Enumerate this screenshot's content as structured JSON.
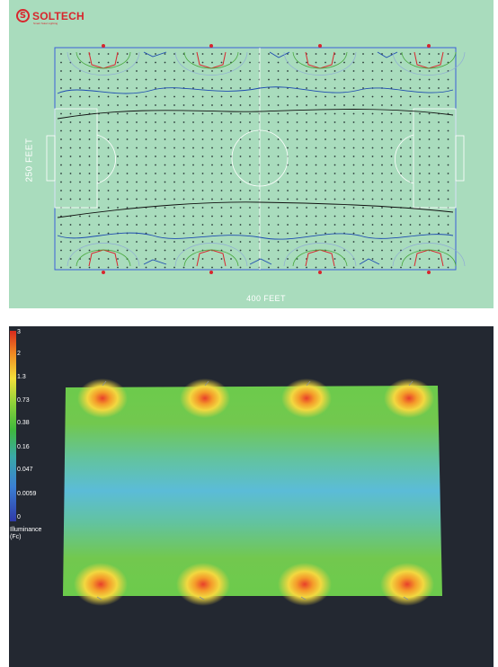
{
  "logo": {
    "mark": "S",
    "word": "SOLTECH",
    "tagline": "Smart Solar Lighting"
  },
  "field": {
    "width_label": "400 FEET",
    "height_label": "250 FEET",
    "background": "#a9dcbd",
    "outline_color": "#3b5fd6",
    "contour_colors": [
      "#d8262d",
      "#49a83e",
      "#8faad6",
      "#1e4bb0",
      "#111111"
    ]
  },
  "illuminance_legend": {
    "labels": [
      "3",
      "2",
      "1.3",
      "0.73",
      "0.38",
      "0.16",
      "0.047",
      "0.0059",
      "0"
    ],
    "title": "Illuminance\n(Fc)",
    "gradient": [
      "#d62a1e",
      "#f08a22",
      "#f2e03a",
      "#8fd23a",
      "#3fb83d",
      "#3aa9a8",
      "#3b7fd3",
      "#2f3aa8"
    ]
  },
  "render_colors": {
    "background": "#232831",
    "hotspot": [
      "#e8402a",
      "#f49a2a",
      "#f2d840"
    ],
    "mid": "#68c74a",
    "center": "#5bbcd8"
  }
}
